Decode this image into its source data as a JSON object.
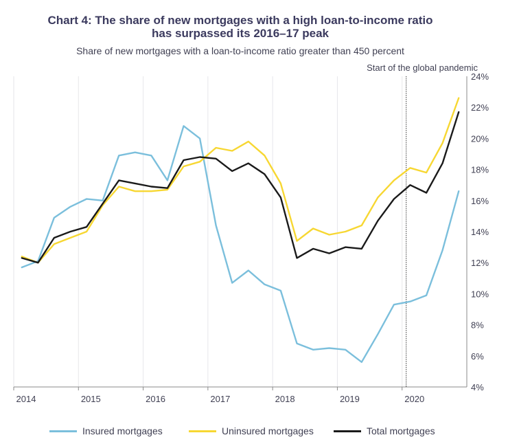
{
  "chart_data": {
    "type": "line",
    "title_line1": "Chart 4: The share of new mortgages with a high loan-to-income ratio",
    "title_line2": "has surpassed its 2016–17 peak",
    "subtitle": "Share of new mortgages with a loan-to-income ratio greater than 450 percent",
    "annotation": "Start of the global pandemic",
    "annotation_x": 2020.0,
    "x": [
      2014.125,
      2014.375,
      2014.625,
      2014.875,
      2015.125,
      2015.375,
      2015.625,
      2015.875,
      2016.125,
      2016.375,
      2016.625,
      2016.875,
      2017.125,
      2017.375,
      2017.625,
      2017.875,
      2018.125,
      2018.375,
      2018.625,
      2018.875,
      2019.125,
      2019.375,
      2019.625,
      2019.875,
      2020.125,
      2020.375,
      2020.625,
      2020.875
    ],
    "series": [
      {
        "name": "Insured mortgages",
        "color": "#7bbfdc",
        "values": [
          11.7,
          12.1,
          14.9,
          15.6,
          16.1,
          16.0,
          18.9,
          19.1,
          18.9,
          17.3,
          20.8,
          20.0,
          14.4,
          10.7,
          11.5,
          10.6,
          10.2,
          6.8,
          6.4,
          6.5,
          6.4,
          5.6,
          7.4,
          9.3,
          9.5,
          9.9,
          12.8,
          16.6
        ]
      },
      {
        "name": "Uninsured mortgages",
        "color": "#f7d732",
        "values": [
          12.4,
          12.0,
          13.2,
          13.6,
          14.0,
          15.7,
          16.9,
          16.6,
          16.6,
          16.7,
          18.2,
          18.5,
          19.4,
          19.2,
          19.8,
          18.9,
          17.1,
          13.4,
          14.2,
          13.8,
          14.0,
          14.4,
          16.2,
          17.3,
          18.1,
          17.8,
          19.7,
          22.6
        ]
      },
      {
        "name": "Total mortgages",
        "color": "#1a1a1a",
        "values": [
          12.3,
          12.0,
          13.6,
          14.0,
          14.3,
          15.8,
          17.3,
          17.1,
          16.9,
          16.8,
          18.6,
          18.8,
          18.7,
          17.9,
          18.4,
          17.7,
          16.2,
          12.3,
          12.9,
          12.6,
          13.0,
          12.9,
          14.7,
          16.1,
          17.0,
          16.5,
          18.4,
          21.7
        ]
      }
    ],
    "ylim": [
      4,
      24
    ],
    "yticks": [
      4,
      6,
      8,
      10,
      12,
      14,
      16,
      18,
      20,
      22,
      24
    ],
    "ytick_labels": [
      "4%",
      "6%",
      "8%",
      "10%",
      "12%",
      "14%",
      "16%",
      "18%",
      "20%",
      "22%",
      "24%"
    ],
    "xlim": [
      2014,
      2021
    ],
    "xticks": [
      2014,
      2015,
      2016,
      2017,
      2018,
      2019,
      2020
    ],
    "xtick_labels": [
      "2014",
      "2015",
      "2016",
      "2017",
      "2018",
      "2019",
      "2020"
    ],
    "grid": true,
    "legend_position": "bottom"
  }
}
